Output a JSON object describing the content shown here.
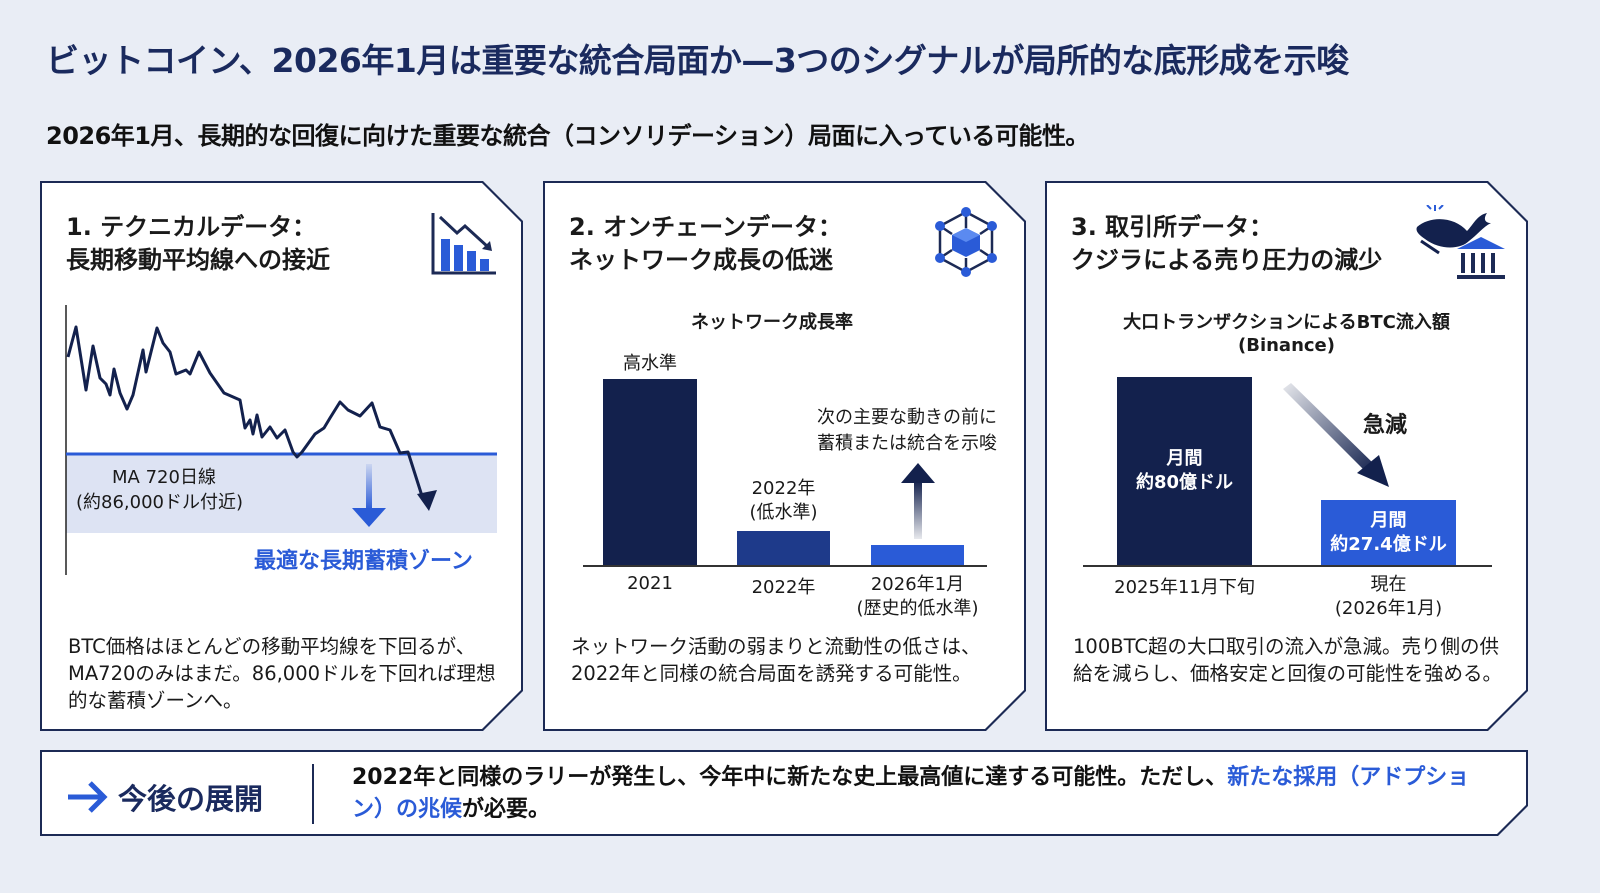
{
  "title": "ビットコイン、2026年1月は重要な統合局面か—3つのシグナルが局所的な底形成を示唆",
  "subtitle": "2026年1月、長期的な回復に向けた重要な統合（コンソリデーション）局面に入っている可能性。",
  "colors": {
    "navy": "#13214d",
    "mid_blue": "#1e3a8a",
    "accent_blue": "#2a5bd7",
    "zone": "#dde3f3",
    "bg": "#e9edf5"
  },
  "panels": [
    {
      "heading_1": "1. テクニカルデータ：",
      "heading_2": "長期移動平均線への接近",
      "icon": "bar-chart-down-icon",
      "ma_label_1": "MA 720日線",
      "ma_label_2": "(約86,000ドル付近)",
      "zone_label": "最適な長期蓄積ゾーン",
      "description": "BTC価格はほとんどの移動平均線を下回るが、MA720のみはまだ。86,000ドルを下回れば理想的な蓄積ゾーンへ。"
    },
    {
      "heading_1": "2. オンチェーンデータ：",
      "heading_2": "ネットワーク成長の低迷",
      "icon": "network-cube-icon",
      "chart_title": "ネットワーク成長率",
      "bar_labels": [
        "高水準",
        "2022年\n(低水準)",
        ""
      ],
      "categories": [
        "2021",
        "2022年",
        "2026年1月\n(歴史的低水準)"
      ],
      "annotation": "次の主要な動きの前に\n蓄積または統合を示唆",
      "description": "ネットワーク活動の弱まりと流動性の低さは、2022年と同様の統合局面を誘発する可能性。"
    },
    {
      "heading_1": "3. 取引所データ：",
      "heading_2": "クジラによる売り圧力の減少",
      "icon": "whale-bank-icon",
      "chart_title": "大口トランザクションによるBTC流入額",
      "chart_subtitle": "(Binance)",
      "bars": [
        {
          "label": "月間\n約80億ドル",
          "category": "2025年11月下旬",
          "value": 80
        },
        {
          "label": "月間\n約27.4億ドル",
          "category": "現在\n(2026年1月)",
          "value": 27.4
        }
      ],
      "annotation": "急減",
      "description": "100BTC超の大口取引の流入が急減。売り側の供給を減らし、価格安定と回復の可能性を強める。"
    }
  ],
  "bottom": {
    "label": "今後の展開",
    "icon": "arrow-right-icon",
    "text_1": "2022年と同様のラリーが発生し、今年中に新たな史上最高値に達する可能性。ただし、",
    "highlight_1": "新たな採用",
    "highlight_2": "（アドプション）の兆候",
    "text_2": "が必要。"
  }
}
